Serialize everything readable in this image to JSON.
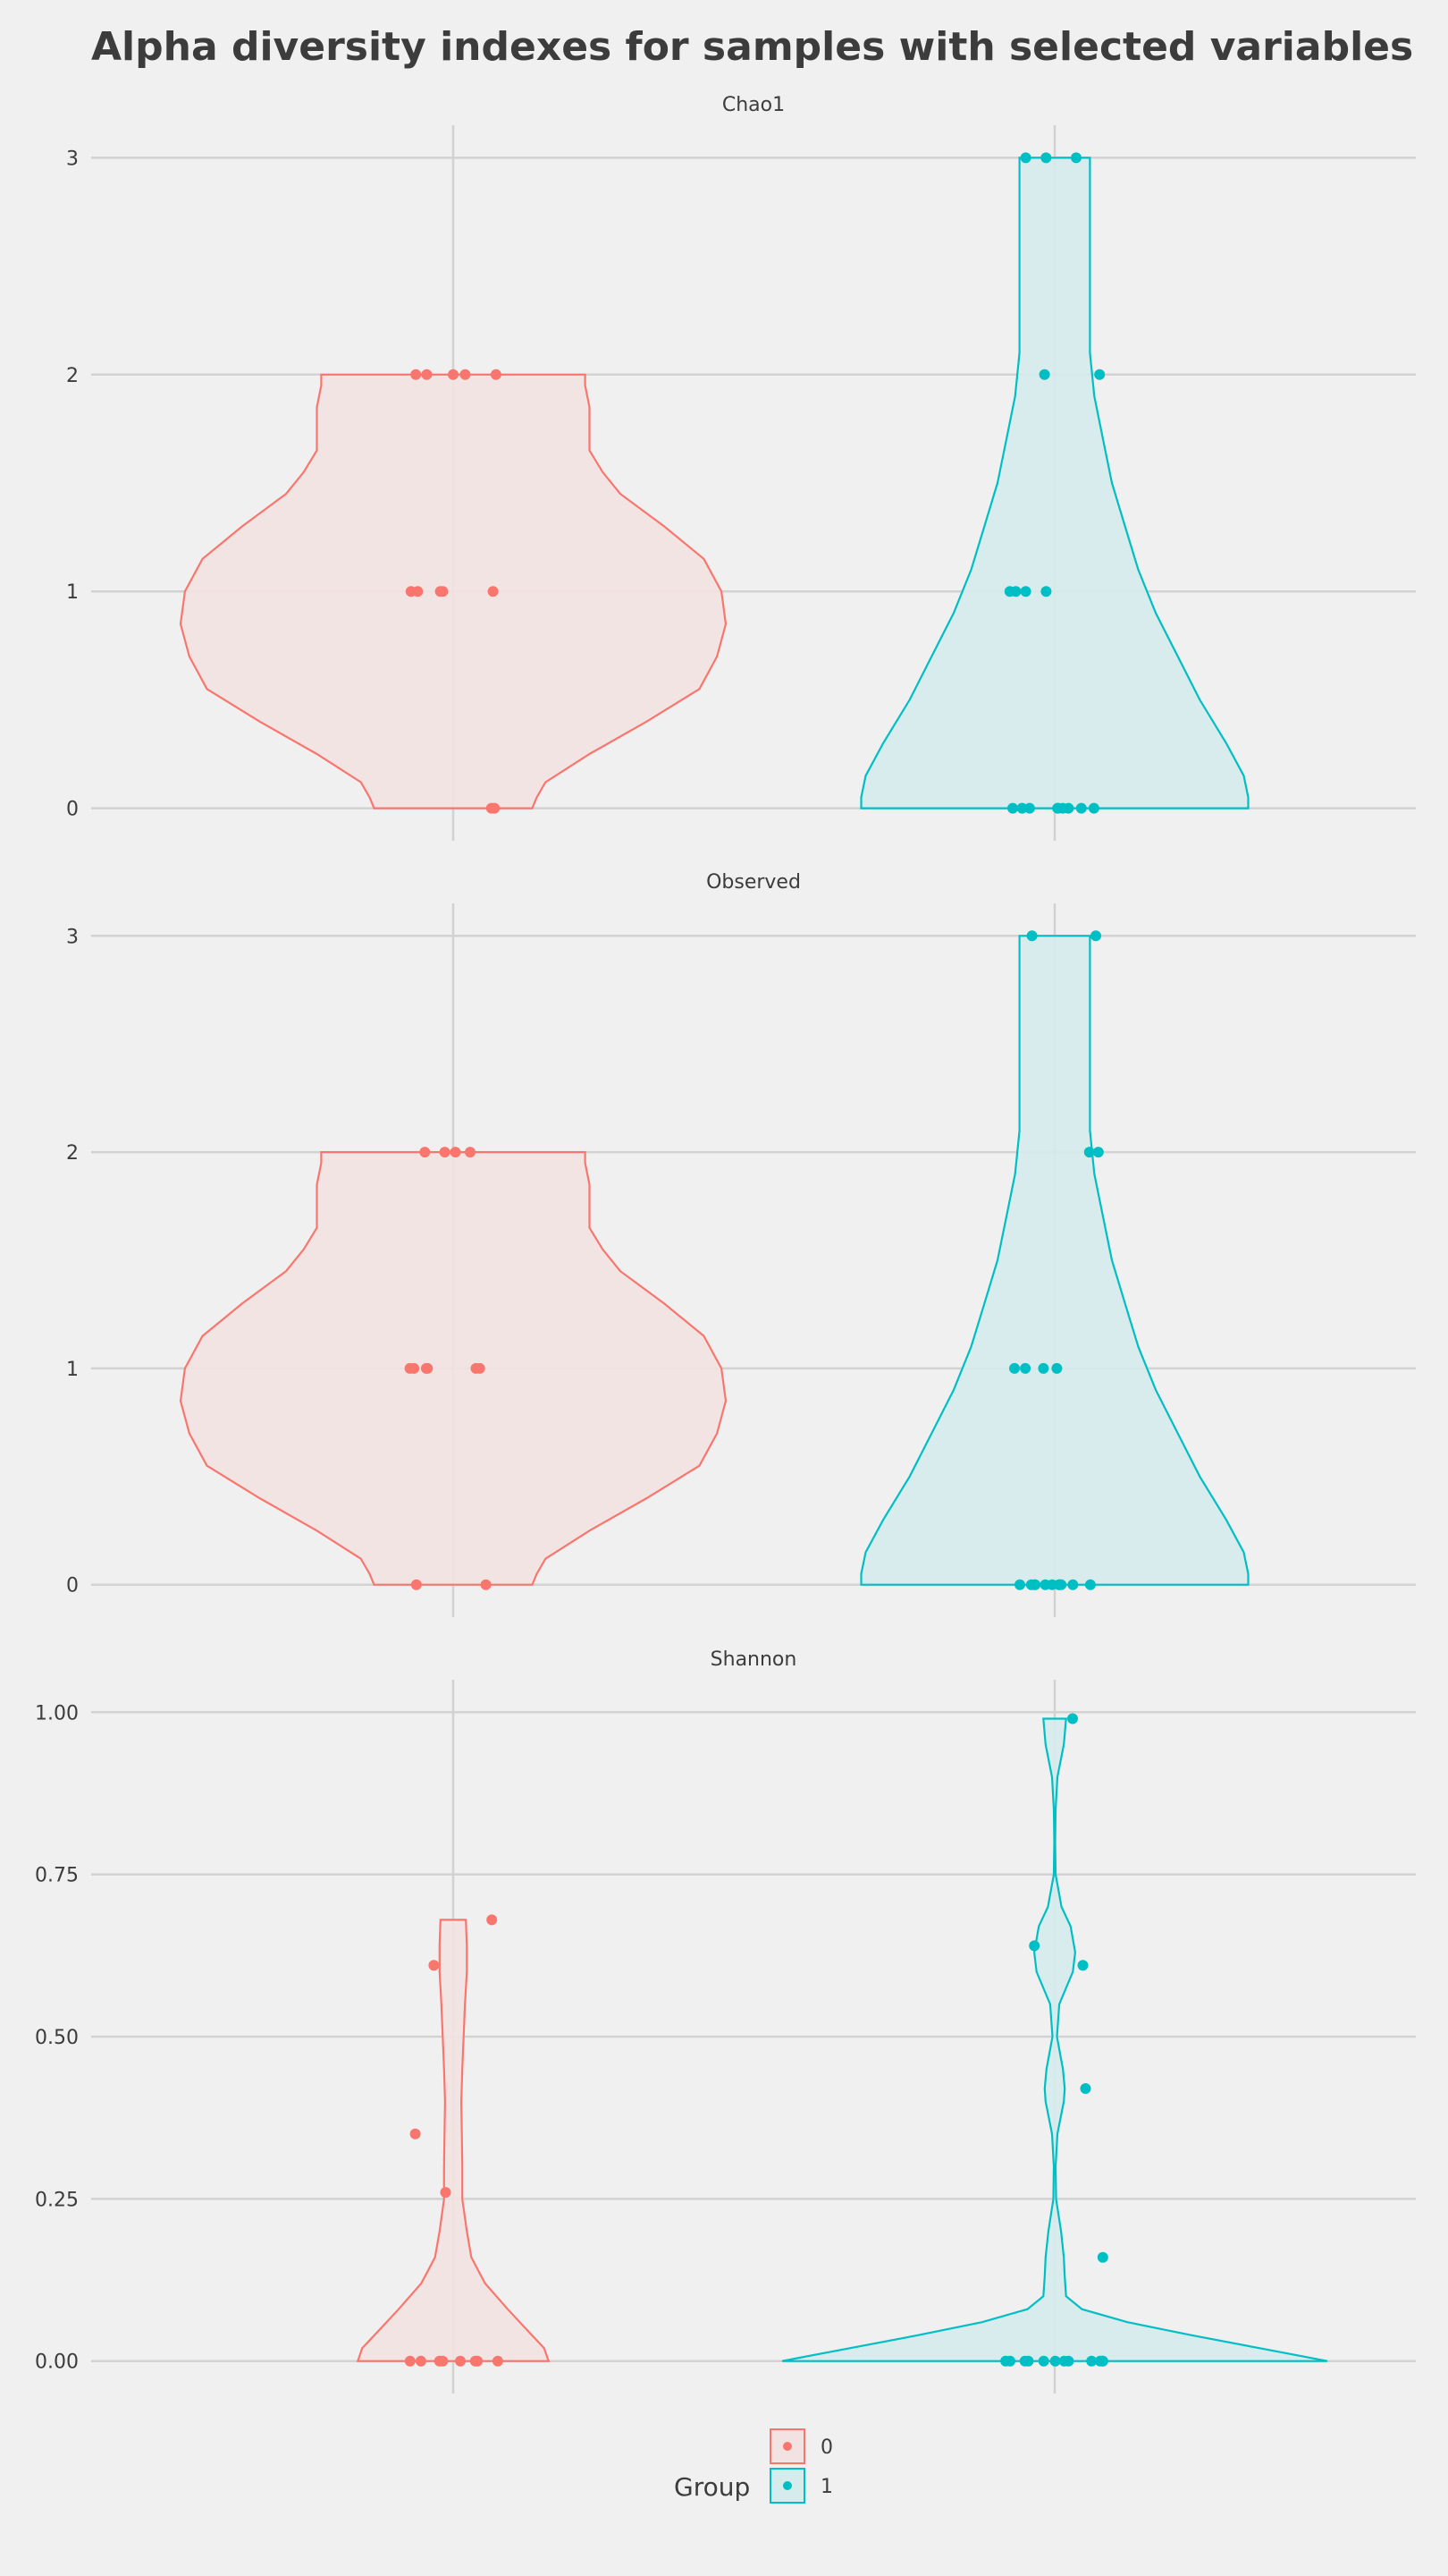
{
  "chart_data": {
    "type": "violin",
    "title": "Alpha diversity indexes for samples with selected variables",
    "legend": {
      "title": "Group",
      "placement": "bottom",
      "entries": [
        {
          "label": "0",
          "color": "#F8766D",
          "fill": "#F3E2E2"
        },
        {
          "label": "1",
          "color": "#00BFC4",
          "fill": "#D5EBEC"
        }
      ]
    },
    "grid": true,
    "panels": [
      {
        "name": "Chao1",
        "ylim": [
          -0.15,
          3.15
        ],
        "yticks": [
          0,
          1,
          2,
          3
        ],
        "ytick_labels": [
          "0",
          "1",
          "2",
          "3"
        ],
        "groups": [
          {
            "group": "0",
            "values": [
              0,
              0,
              1,
              1,
              1,
              1,
              1,
              2,
              2,
              2,
              2,
              2
            ],
            "density": [
              [
                0,
                0.18
              ],
              [
                0.05,
                0.19
              ],
              [
                0.12,
                0.21
              ],
              [
                0.25,
                0.31
              ],
              [
                0.4,
                0.44
              ],
              [
                0.55,
                0.56
              ],
              [
                0.7,
                0.6
              ],
              [
                0.85,
                0.62
              ],
              [
                1.0,
                0.61
              ],
              [
                1.15,
                0.57
              ],
              [
                1.3,
                0.48
              ],
              [
                1.45,
                0.38
              ],
              [
                1.55,
                0.34
              ],
              [
                1.65,
                0.31
              ],
              [
                1.75,
                0.31
              ],
              [
                1.85,
                0.31
              ],
              [
                1.95,
                0.3
              ],
              [
                2.0,
                0.3
              ]
            ]
          },
          {
            "group": "1",
            "values": [
              0,
              0,
              0,
              0,
              0,
              0,
              0,
              0,
              0,
              1,
              1,
              1,
              1,
              2,
              2,
              3,
              3,
              3
            ],
            "density": [
              [
                0,
                0.44
              ],
              [
                0.05,
                0.44
              ],
              [
                0.15,
                0.43
              ],
              [
                0.3,
                0.39
              ],
              [
                0.5,
                0.33
              ],
              [
                0.7,
                0.28
              ],
              [
                0.9,
                0.23
              ],
              [
                1.1,
                0.19
              ],
              [
                1.3,
                0.16
              ],
              [
                1.5,
                0.13
              ],
              [
                1.7,
                0.11
              ],
              [
                1.9,
                0.09
              ],
              [
                2.1,
                0.08
              ],
              [
                2.3,
                0.08
              ],
              [
                2.5,
                0.08
              ],
              [
                2.7,
                0.08
              ],
              [
                2.9,
                0.08
              ],
              [
                3.0,
                0.08
              ]
            ]
          }
        ]
      },
      {
        "name": "Observed",
        "ylim": [
          -0.15,
          3.15
        ],
        "yticks": [
          0,
          1,
          2,
          3
        ],
        "ytick_labels": [
          "0",
          "1",
          "2",
          "3"
        ],
        "groups": [
          {
            "group": "0",
            "values": [
              0,
              0,
              1,
              1,
              1,
              1,
              1,
              1,
              2,
              2,
              2,
              2
            ],
            "density": [
              [
                0,
                0.18
              ],
              [
                0.05,
                0.19
              ],
              [
                0.12,
                0.21
              ],
              [
                0.25,
                0.31
              ],
              [
                0.4,
                0.44
              ],
              [
                0.55,
                0.56
              ],
              [
                0.7,
                0.6
              ],
              [
                0.85,
                0.62
              ],
              [
                1.0,
                0.61
              ],
              [
                1.15,
                0.57
              ],
              [
                1.3,
                0.48
              ],
              [
                1.45,
                0.38
              ],
              [
                1.55,
                0.34
              ],
              [
                1.65,
                0.31
              ],
              [
                1.75,
                0.31
              ],
              [
                1.85,
                0.31
              ],
              [
                1.95,
                0.3
              ],
              [
                2.0,
                0.3
              ]
            ]
          },
          {
            "group": "1",
            "values": [
              0,
              0,
              0,
              0,
              0,
              0,
              0,
              0,
              0,
              0,
              0,
              1,
              1,
              1,
              1,
              2,
              2,
              3,
              3
            ],
            "density": [
              [
                0,
                0.44
              ],
              [
                0.05,
                0.44
              ],
              [
                0.15,
                0.43
              ],
              [
                0.3,
                0.39
              ],
              [
                0.5,
                0.33
              ],
              [
                0.7,
                0.28
              ],
              [
                0.9,
                0.23
              ],
              [
                1.1,
                0.19
              ],
              [
                1.3,
                0.16
              ],
              [
                1.5,
                0.13
              ],
              [
                1.7,
                0.11
              ],
              [
                1.9,
                0.09
              ],
              [
                2.1,
                0.08
              ],
              [
                2.3,
                0.08
              ],
              [
                2.5,
                0.08
              ],
              [
                2.7,
                0.08
              ],
              [
                2.9,
                0.08
              ],
              [
                3.0,
                0.08
              ]
            ]
          }
        ]
      },
      {
        "name": "Shannon",
        "ylim": [
          -0.05,
          1.05
        ],
        "yticks": [
          0,
          0.25,
          0.5,
          0.75,
          1.0
        ],
        "ytick_labels": [
          "0.00",
          "0.25",
          "0.50",
          "0.75",
          "1.00"
        ],
        "groups": [
          {
            "group": "0",
            "values": [
              0,
              0,
              0,
              0,
              0,
              0,
              0,
              0,
              0.26,
              0.35,
              0.61,
              0.68
            ],
            "density": [
              [
                0,
                0.21
              ],
              [
                0.02,
                0.2
              ],
              [
                0.05,
                0.16
              ],
              [
                0.08,
                0.12
              ],
              [
                0.12,
                0.07
              ],
              [
                0.16,
                0.04
              ],
              [
                0.2,
                0.03
              ],
              [
                0.25,
                0.02
              ],
              [
                0.3,
                0.02
              ],
              [
                0.35,
                0.019
              ],
              [
                0.4,
                0.018
              ],
              [
                0.45,
                0.02
              ],
              [
                0.5,
                0.023
              ],
              [
                0.55,
                0.026
              ],
              [
                0.6,
                0.03
              ],
              [
                0.64,
                0.03
              ],
              [
                0.68,
                0.028
              ]
            ]
          },
          {
            "group": "1",
            "values": [
              0,
              0,
              0,
              0,
              0,
              0,
              0,
              0,
              0,
              0,
              0,
              0,
              0.16,
              0.42,
              0.61,
              0.64,
              0.99
            ],
            "density": [
              [
                0,
                0.6
              ],
              [
                0.02,
                0.45
              ],
              [
                0.04,
                0.3
              ],
              [
                0.06,
                0.16
              ],
              [
                0.08,
                0.06
              ],
              [
                0.1,
                0.025
              ],
              [
                0.13,
                0.022
              ],
              [
                0.16,
                0.02
              ],
              [
                0.2,
                0.014
              ],
              [
                0.25,
                0.003
              ],
              [
                0.3,
                0.002
              ],
              [
                0.35,
                0.006
              ],
              [
                0.4,
                0.02
              ],
              [
                0.42,
                0.022
              ],
              [
                0.45,
                0.018
              ],
              [
                0.5,
                0.005
              ],
              [
                0.55,
                0.01
              ],
              [
                0.6,
                0.04
              ],
              [
                0.63,
                0.045
              ],
              [
                0.67,
                0.035
              ],
              [
                0.7,
                0.015
              ],
              [
                0.75,
                0.002
              ],
              [
                0.8,
                0.001
              ],
              [
                0.85,
                0.002
              ],
              [
                0.9,
                0.006
              ],
              [
                0.95,
                0.02
              ],
              [
                0.99,
                0.025
              ]
            ]
          }
        ]
      }
    ]
  }
}
